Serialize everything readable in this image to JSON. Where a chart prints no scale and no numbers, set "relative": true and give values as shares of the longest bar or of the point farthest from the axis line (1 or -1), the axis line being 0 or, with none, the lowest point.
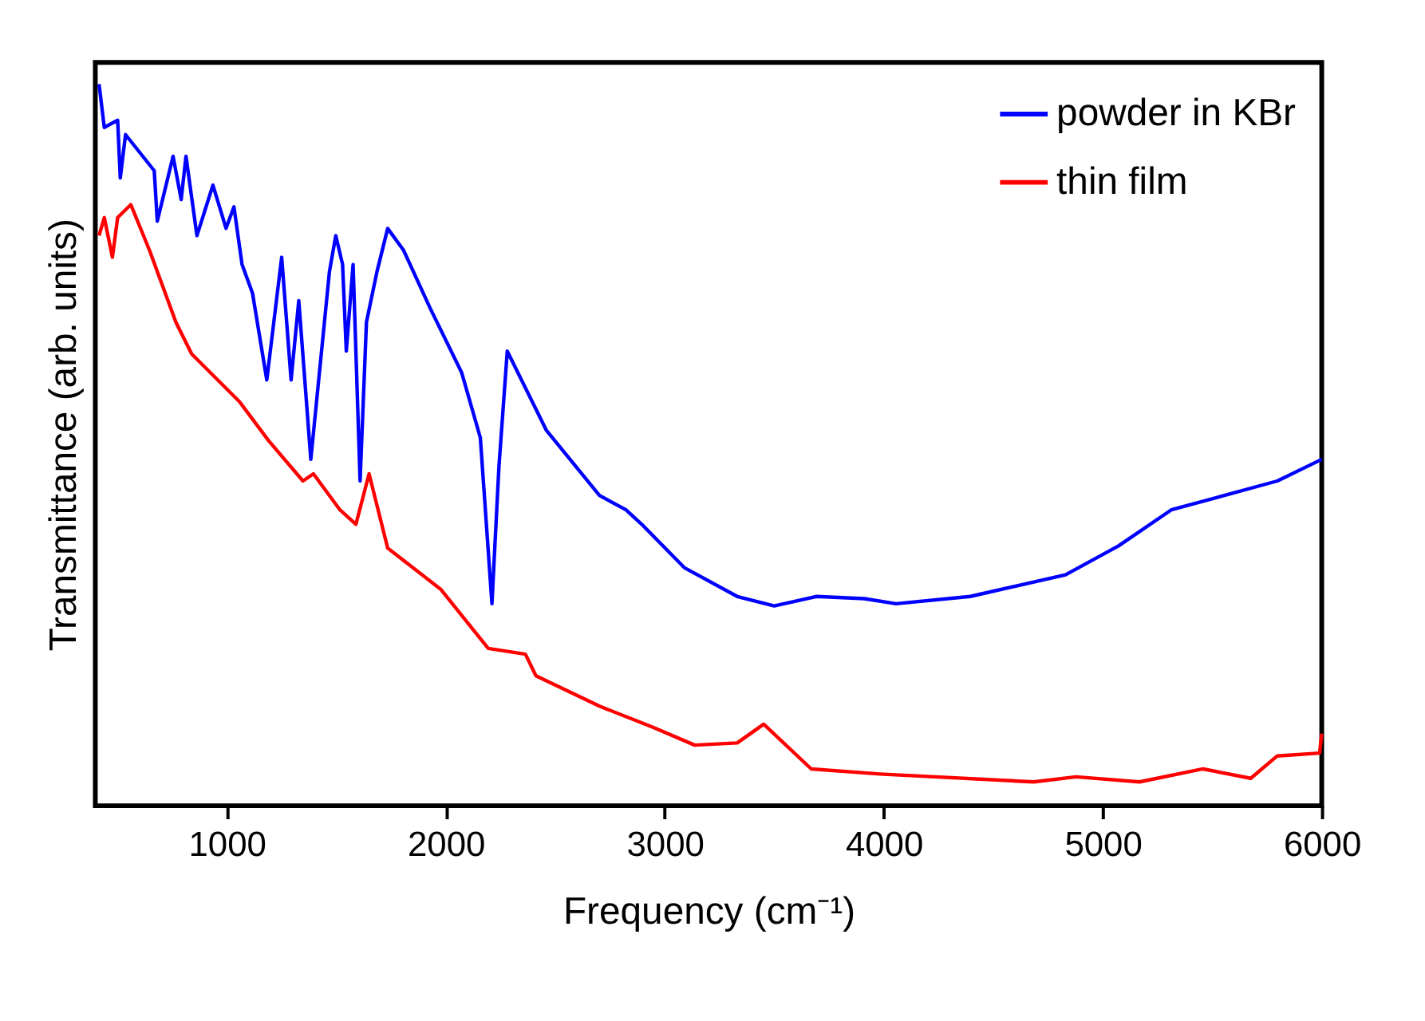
{
  "chart_data": {
    "type": "line",
    "xlabel": "Frequency (cm⁻¹)",
    "ylabel": "Transmittance (arb. units)",
    "relative": true,
    "xlim": [
      400,
      6000
    ],
    "xticks": [
      1000,
      2000,
      3000,
      4000,
      5000,
      6000
    ],
    "tick_labels": "x",
    "grid": false,
    "legend": "top right",
    "line_style": "solid",
    "marker": "none",
    "series": [
      {
        "name": "powder in KBr",
        "color": "#0000ff",
        "x": [
          417,
          441,
          502,
          514,
          538,
          669,
          683,
          755,
          792,
          814,
          864,
          937,
          997,
          1033,
          1070,
          1118,
          1183,
          1251,
          1294,
          1329,
          1384,
          1469,
          1498,
          1529,
          1546,
          1577,
          1609,
          1638,
          1686,
          1735,
          1807,
          1928,
          2073,
          2158,
          2211,
          2243,
          2281,
          2460,
          2702,
          2823,
          2895,
          3089,
          3331,
          3500,
          3693,
          3911,
          4056,
          4395,
          4830,
          5072,
          5313,
          5555,
          5797,
          6000
        ],
        "values": [
          1.0,
          0.94,
          0.95,
          0.87,
          0.93,
          0.88,
          0.81,
          0.9,
          0.84,
          0.9,
          0.79,
          0.86,
          0.8,
          0.83,
          0.75,
          0.71,
          0.59,
          0.76,
          0.59,
          0.7,
          0.48,
          0.74,
          0.79,
          0.75,
          0.63,
          0.75,
          0.45,
          0.67,
          0.74,
          0.8,
          0.77,
          0.69,
          0.6,
          0.51,
          0.28,
          0.47,
          0.63,
          0.52,
          0.43,
          0.41,
          0.39,
          0.33,
          0.29,
          0.277,
          0.29,
          0.287,
          0.28,
          0.29,
          0.32,
          0.36,
          0.41,
          0.43,
          0.45,
          0.48
        ]
      },
      {
        "name": "thin film",
        "color": "#ff0000",
        "x": [
          417,
          441,
          478,
          502,
          562,
          647,
          768,
          840,
          1058,
          1191,
          1348,
          1396,
          1517,
          1590,
          1650,
          1735,
          1977,
          2194,
          2364,
          2412,
          2702,
          2944,
          3137,
          3331,
          3452,
          3669,
          3983,
          4685,
          4878,
          5168,
          5458,
          5676,
          5797,
          5990,
          6000
        ],
        "values": [
          0.79,
          0.815,
          0.76,
          0.815,
          0.833,
          0.77,
          0.67,
          0.626,
          0.56,
          0.506,
          0.45,
          0.46,
          0.41,
          0.39,
          0.46,
          0.357,
          0.3,
          0.218,
          0.21,
          0.18,
          0.138,
          0.109,
          0.084,
          0.087,
          0.113,
          0.051,
          0.044,
          0.033,
          0.04,
          0.033,
          0.051,
          0.038,
          0.069,
          0.073,
          0.1
        ]
      }
    ]
  }
}
